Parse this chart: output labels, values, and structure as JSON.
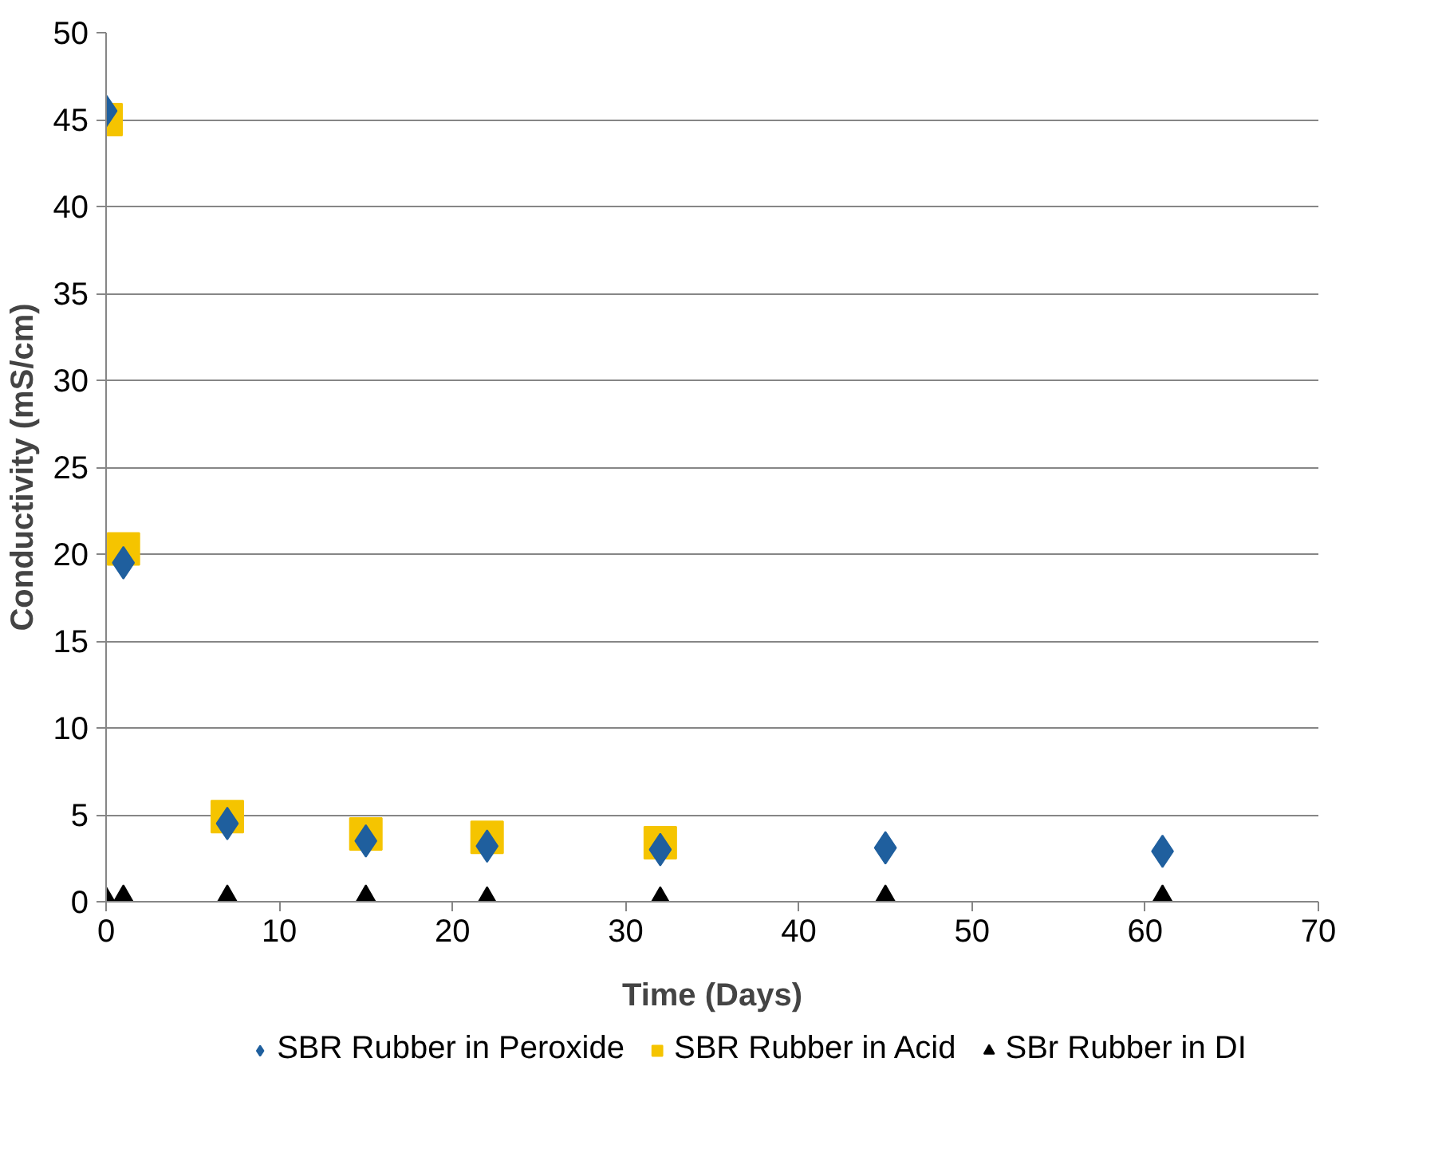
{
  "chart_data": {
    "type": "scatter",
    "xlabel": "Time (Days)",
    "ylabel": "Conductivity (mS/cm)",
    "xlim": [
      0,
      70
    ],
    "xticks": [
      0,
      10,
      20,
      30,
      40,
      50,
      60,
      70
    ],
    "ylim": [
      0,
      50
    ],
    "yticks": [
      0,
      5,
      10,
      15,
      20,
      25,
      30,
      35,
      40,
      45,
      50
    ],
    "grid": "y",
    "legend": "bottom",
    "series": [
      {
        "name": "SBR Rubber in Peroxide",
        "color": "#1f5f9e",
        "marker": "diamond",
        "x": [
          0,
          1,
          7,
          15,
          22,
          32,
          45,
          61
        ],
        "values": [
          45.5,
          19.5,
          4.5,
          3.5,
          3.2,
          3.0,
          3.1,
          2.9
        ]
      },
      {
        "name": "SBR Rubber in Acid",
        "color": "#f5c400",
        "marker": "square",
        "x": [
          0,
          1,
          7,
          15,
          22,
          32
        ],
        "values": [
          45,
          20.3,
          4.9,
          3.9,
          3.7,
          3.4
        ]
      },
      {
        "name": "SBr Rubber in DI",
        "color": "#000000",
        "marker": "triangle",
        "x": [
          0,
          1,
          7,
          15,
          22,
          32,
          45,
          61
        ],
        "values": [
          0,
          0.1,
          0.1,
          0.1,
          0,
          0,
          0.1,
          0.1
        ]
      }
    ]
  }
}
